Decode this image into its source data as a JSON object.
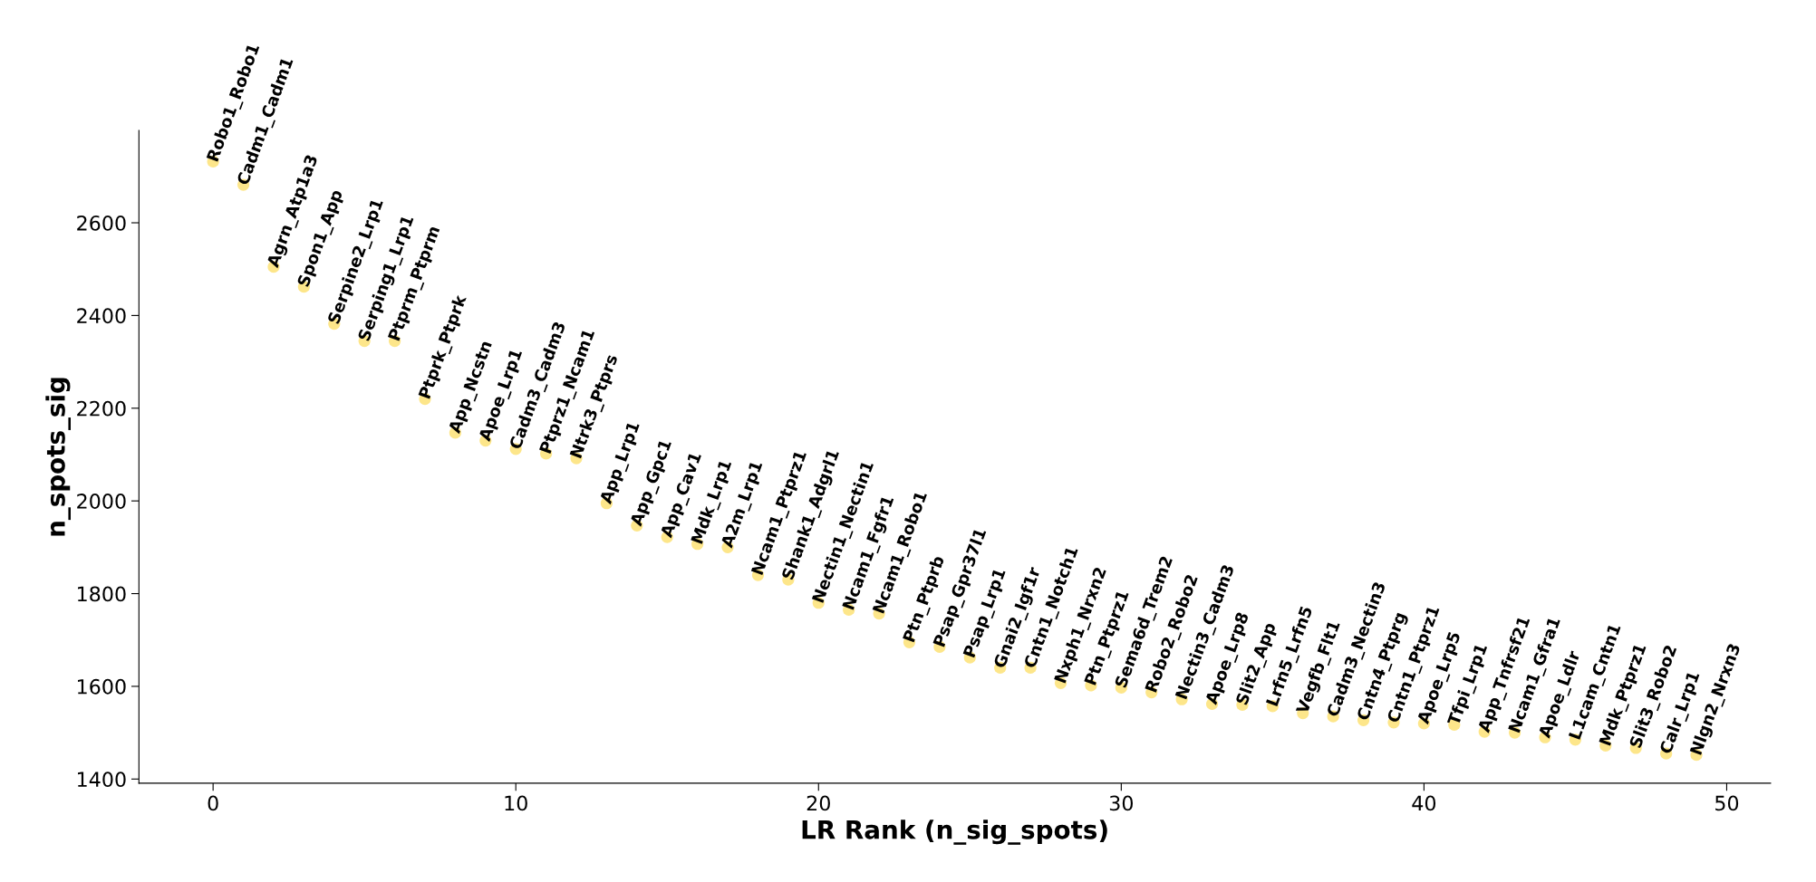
{
  "chart_data": {
    "type": "scatter",
    "xlabel": "LR Rank (n_sig_spots)",
    "ylabel": "n_spots_sig",
    "x": [
      0,
      1,
      2,
      3,
      4,
      5,
      6,
      7,
      8,
      9,
      10,
      11,
      12,
      13,
      14,
      15,
      16,
      17,
      18,
      19,
      20,
      21,
      22,
      23,
      24,
      25,
      26,
      27,
      28,
      29,
      30,
      31,
      32,
      33,
      34,
      35,
      36,
      37,
      38,
      39,
      40,
      41,
      42,
      43,
      44,
      45,
      46,
      47,
      48,
      49
    ],
    "series": [
      {
        "color": "#fde68a",
        "values": [
          2732,
          2682,
          2505,
          2462,
          2382,
          2345,
          2345,
          2220,
          2147,
          2130,
          2112,
          2102,
          2092,
          1995,
          1947,
          1922,
          1907,
          1900,
          1840,
          1830,
          1780,
          1765,
          1757,
          1695,
          1685,
          1662,
          1640,
          1640,
          1607,
          1602,
          1597,
          1587,
          1572,
          1562,
          1560,
          1557,
          1542,
          1535,
          1527,
          1522,
          1520,
          1517,
          1502,
          1500,
          1490,
          1485,
          1472,
          1467,
          1455,
          1452
        ]
      }
    ],
    "marker": "circle",
    "xlim": [
      -2.45,
      51.45
    ],
    "xticks": [
      0,
      10,
      20,
      30,
      40,
      50
    ],
    "ylim": [
      1391,
      2799
    ],
    "yticks": [
      1400,
      1600,
      1800,
      2000,
      2200,
      2400,
      2600
    ],
    "grid": false,
    "legend": false,
    "annotations": [
      {
        "text": "Robo1_Robo1",
        "x": 0,
        "y": 2732
      },
      {
        "text": "Cadm1_Cadm1",
        "x": 1,
        "y": 2682
      },
      {
        "text": "Agrn_Atp1a3",
        "x": 2,
        "y": 2505
      },
      {
        "text": "Spon1_App",
        "x": 3,
        "y": 2462
      },
      {
        "text": "Serpine2_Lrp1",
        "x": 4,
        "y": 2382
      },
      {
        "text": "Serping1_Lrp1",
        "x": 5,
        "y": 2345
      },
      {
        "text": "Ptprm_Ptprm",
        "x": 6,
        "y": 2345
      },
      {
        "text": "Ptprk_Ptprk",
        "x": 7,
        "y": 2220
      },
      {
        "text": "App_Ncstn",
        "x": 8,
        "y": 2147
      },
      {
        "text": "Apoe_Lrp1",
        "x": 9,
        "y": 2130
      },
      {
        "text": "Cadm3_Cadm3",
        "x": 10,
        "y": 2112
      },
      {
        "text": "Ptprz1_Ncam1",
        "x": 11,
        "y": 2102
      },
      {
        "text": "Ntrk3_Ptprs",
        "x": 12,
        "y": 2092
      },
      {
        "text": "App_Lrp1",
        "x": 13,
        "y": 1995
      },
      {
        "text": "App_Gpc1",
        "x": 14,
        "y": 1947
      },
      {
        "text": "App_Cav1",
        "x": 15,
        "y": 1922
      },
      {
        "text": "Mdk_Lrp1",
        "x": 16,
        "y": 1907
      },
      {
        "text": "A2m_Lrp1",
        "x": 17,
        "y": 1900
      },
      {
        "text": "Ncam1_Ptprz1",
        "x": 18,
        "y": 1840
      },
      {
        "text": "Shank1_Adgrl1",
        "x": 19,
        "y": 1830
      },
      {
        "text": "Nectin1_Nectin1",
        "x": 20,
        "y": 1780
      },
      {
        "text": "Ncam1_Fgfr1",
        "x": 21,
        "y": 1765
      },
      {
        "text": "Ncam1_Robo1",
        "x": 22,
        "y": 1757
      },
      {
        "text": "Ptn_Ptprb",
        "x": 23,
        "y": 1695
      },
      {
        "text": "Psap_Gpr37l1",
        "x": 24,
        "y": 1685
      },
      {
        "text": "Psap_Lrp1",
        "x": 25,
        "y": 1662
      },
      {
        "text": "Gnai2_Igf1r",
        "x": 26,
        "y": 1640
      },
      {
        "text": "Cntn1_Notch1",
        "x": 27,
        "y": 1640
      },
      {
        "text": "Nxph1_Nrxn2",
        "x": 28,
        "y": 1607
      },
      {
        "text": "Ptn_Ptprz1",
        "x": 29,
        "y": 1602
      },
      {
        "text": "Sema6d_Trem2",
        "x": 30,
        "y": 1597
      },
      {
        "text": "Robo2_Robo2",
        "x": 31,
        "y": 1587
      },
      {
        "text": "Nectin3_Cadm3",
        "x": 32,
        "y": 1572
      },
      {
        "text": "Apoe_Lrp8",
        "x": 33,
        "y": 1562
      },
      {
        "text": "Slit2_App",
        "x": 34,
        "y": 1560
      },
      {
        "text": "Lrfn5_Lrfn5",
        "x": 35,
        "y": 1557
      },
      {
        "text": "Vegfb_Flt1",
        "x": 36,
        "y": 1542
      },
      {
        "text": "Cadm3_Nectin3",
        "x": 37,
        "y": 1535
      },
      {
        "text": "Cntn4_Ptprg",
        "x": 38,
        "y": 1527
      },
      {
        "text": "Cntn1_Ptprz1",
        "x": 39,
        "y": 1522
      },
      {
        "text": "Apoe_Lrp5",
        "x": 40,
        "y": 1520
      },
      {
        "text": "Tfpi_Lrp1",
        "x": 41,
        "y": 1517
      },
      {
        "text": "App_Tnfrsf21",
        "x": 42,
        "y": 1502
      },
      {
        "text": "Ncam1_Gfra1",
        "x": 43,
        "y": 1500
      },
      {
        "text": "Apoe_Ldlr",
        "x": 44,
        "y": 1490
      },
      {
        "text": "L1cam_Cntn1",
        "x": 45,
        "y": 1485
      },
      {
        "text": "Mdk_Ptprz1",
        "x": 46,
        "y": 1472
      },
      {
        "text": "Slit3_Robo2",
        "x": 47,
        "y": 1467
      },
      {
        "text": "Calr_Lrp1",
        "x": 48,
        "y": 1455
      },
      {
        "text": "Nlgn2_Nrxn3",
        "x": 49,
        "y": 1452
      }
    ]
  }
}
